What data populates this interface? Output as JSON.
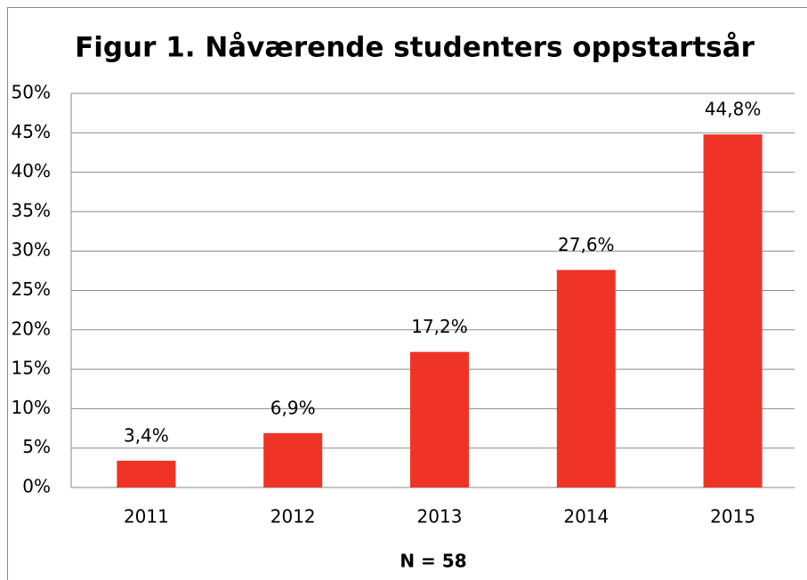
{
  "chart_data": {
    "type": "bar",
    "title": "Figur 1. Nåværende studenters oppstartsår",
    "x_label": "N = 58",
    "categories": [
      "2011",
      "2012",
      "2013",
      "2014",
      "2015"
    ],
    "values": [
      3.4,
      6.9,
      17.2,
      27.6,
      44.8
    ],
    "value_labels": [
      "3,4%",
      "6,9%",
      "17,2%",
      "27,6%",
      "44,8%"
    ],
    "color": "#ef3427",
    "ylim": [
      0,
      50
    ],
    "yticks": [
      {
        "value": 0,
        "label": "0%"
      },
      {
        "value": 5,
        "label": "5%"
      },
      {
        "value": 10,
        "label": "10%"
      },
      {
        "value": 15,
        "label": "15%"
      },
      {
        "value": 20,
        "label": "20%"
      },
      {
        "value": 25,
        "label": "25%"
      },
      {
        "value": 30,
        "label": "30%"
      },
      {
        "value": 35,
        "label": "35%"
      },
      {
        "value": 40,
        "label": "40%"
      },
      {
        "value": 45,
        "label": "45%"
      },
      {
        "value": 50,
        "label": "50%"
      }
    ],
    "grid": true
  }
}
